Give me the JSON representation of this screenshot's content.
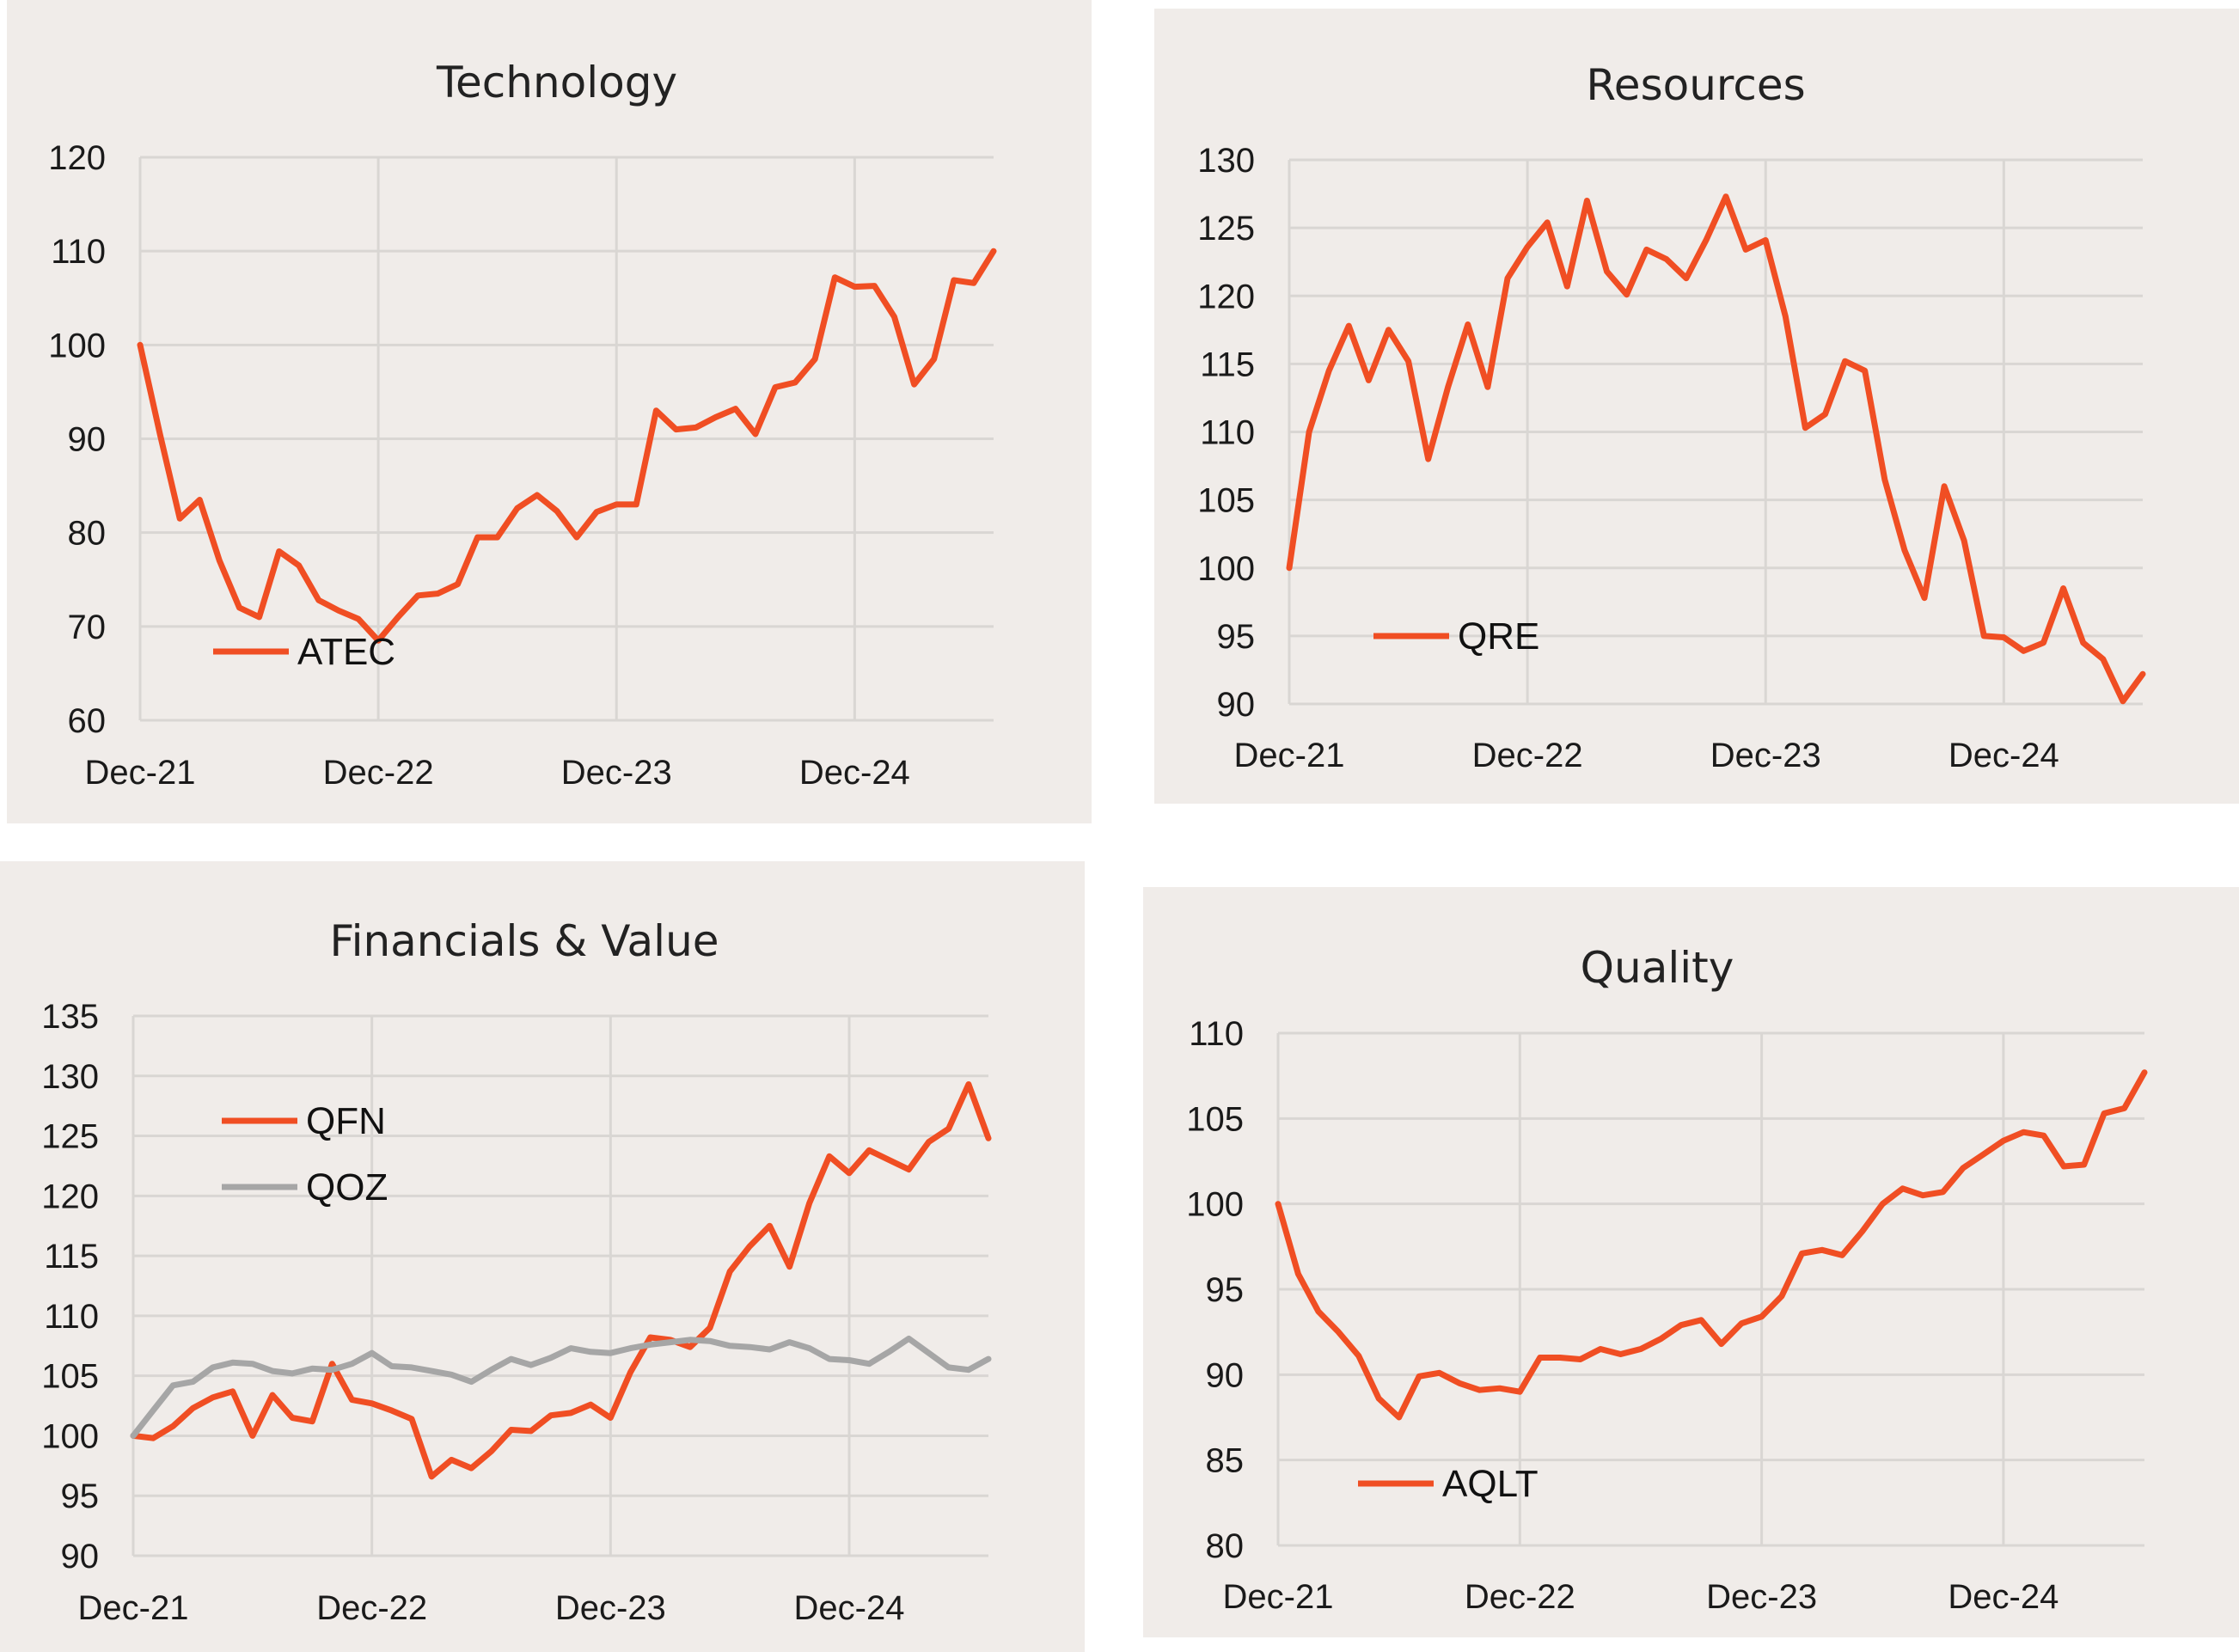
{
  "chart_data": [
    {
      "type": "line",
      "title": "Technology",
      "xlabel": "",
      "ylabel": "",
      "x_tick_labels": [
        "Dec-21",
        "Dec-22",
        "Dec-23",
        "Dec-24"
      ],
      "y_ticks": [
        60,
        70,
        80,
        90,
        100,
        110,
        120
      ],
      "ylim": [
        60,
        120
      ],
      "grid": true,
      "legend_position": "lower-left",
      "series": [
        {
          "name": "ATEC",
          "color": "#f04e23",
          "values": [
            100,
            90.5,
            81.5,
            83.5,
            77,
            72,
            71,
            78,
            76.5,
            72.8,
            71.7,
            70.8,
            68.5,
            71,
            73.3,
            73.5,
            74.5,
            79.5,
            79.5,
            82.6,
            84,
            82.3,
            79.5,
            82.2,
            83,
            83,
            93,
            91,
            91.2,
            92.3,
            93.2,
            90.5,
            95.5,
            96,
            98.5,
            107.2,
            106.2,
            106.3,
            103,
            95.8,
            98.5,
            106.9,
            106.6,
            110
          ]
        }
      ]
    },
    {
      "type": "line",
      "title": "Resources",
      "xlabel": "",
      "ylabel": "",
      "x_tick_labels": [
        "Dec-21",
        "Dec-22",
        "Dec-23",
        "Dec-24"
      ],
      "y_ticks": [
        90,
        95,
        100,
        105,
        110,
        115,
        120,
        125,
        130
      ],
      "ylim": [
        90,
        130
      ],
      "grid": true,
      "legend_position": "lower-left",
      "series": [
        {
          "name": "QRE",
          "color": "#f04e23",
          "values": [
            100,
            110,
            114.5,
            117.8,
            113.8,
            117.5,
            115.2,
            108,
            113.3,
            117.9,
            113.3,
            121.3,
            123.6,
            125.4,
            120.7,
            127,
            121.8,
            120.1,
            123.4,
            122.7,
            121.3,
            124.1,
            127.3,
            123.4,
            124.1,
            118.5,
            110.3,
            111.3,
            115.2,
            114.5,
            106.5,
            101.3,
            97.8,
            106,
            102,
            95,
            94.9,
            93.9,
            94.5,
            98.5,
            94.5,
            93.3,
            90.2,
            92.2
          ]
        }
      ]
    },
    {
      "type": "line",
      "title": "Financials & Value",
      "xlabel": "",
      "ylabel": "",
      "x_tick_labels": [
        "Dec-21",
        "Dec-22",
        "Dec-23",
        "Dec-24"
      ],
      "y_ticks": [
        90,
        95,
        100,
        105,
        110,
        115,
        120,
        125,
        130,
        135
      ],
      "ylim": [
        90,
        135
      ],
      "grid": true,
      "legend_position": "upper-left",
      "series": [
        {
          "name": "QFN",
          "color": "#f04e23",
          "values": [
            100,
            99.8,
            100.8,
            102.3,
            103.2,
            103.7,
            100,
            103.4,
            101.5,
            101.2,
            106,
            103,
            102.7,
            102.1,
            101.4,
            96.6,
            98,
            97.3,
            98.7,
            100.5,
            100.4,
            101.7,
            101.9,
            102.6,
            101.5,
            105.3,
            108.2,
            108,
            107.4,
            109,
            113.7,
            115.8,
            117.5,
            114.1,
            119.4,
            123.3,
            121.9,
            123.8,
            123,
            122.2,
            124.5,
            125.6,
            129.3,
            124.8
          ]
        },
        {
          "name": "QOZ",
          "color": "#a6a6a6",
          "values": [
            100,
            102.1,
            104.2,
            104.5,
            105.7,
            106.1,
            106,
            105.4,
            105.2,
            105.6,
            105.5,
            106,
            106.9,
            105.8,
            105.7,
            105.4,
            105.1,
            104.5,
            105.5,
            106.4,
            105.9,
            106.5,
            107.3,
            107,
            106.9,
            107.3,
            107.6,
            107.8,
            108,
            107.9,
            107.5,
            107.4,
            107.2,
            107.8,
            107.3,
            106.4,
            106.3,
            106,
            107,
            108.1,
            106.9,
            105.7,
            105.5,
            106.4
          ]
        }
      ]
    },
    {
      "type": "line",
      "title": "Quality",
      "xlabel": "",
      "ylabel": "",
      "x_tick_labels": [
        "Dec-21",
        "Dec-22",
        "Dec-23",
        "Dec-24"
      ],
      "y_ticks": [
        80,
        85,
        90,
        95,
        100,
        105,
        110
      ],
      "ylim": [
        80,
        110
      ],
      "grid": true,
      "legend_position": "lower-left",
      "series": [
        {
          "name": "AQLT",
          "color": "#f04e23",
          "values": [
            100,
            95.9,
            93.7,
            92.5,
            91.1,
            88.6,
            87.5,
            89.9,
            90.1,
            89.5,
            89.1,
            89.2,
            89,
            91,
            91,
            90.9,
            91.5,
            91.2,
            91.5,
            92.1,
            92.9,
            93.2,
            91.8,
            93,
            93.4,
            94.6,
            97.1,
            97.3,
            97,
            98.4,
            100,
            100.9,
            100.5,
            100.7,
            102.1,
            102.9,
            103.7,
            104.2,
            104,
            102.2,
            102.3,
            105.3,
            105.6,
            107.7
          ]
        }
      ]
    }
  ]
}
